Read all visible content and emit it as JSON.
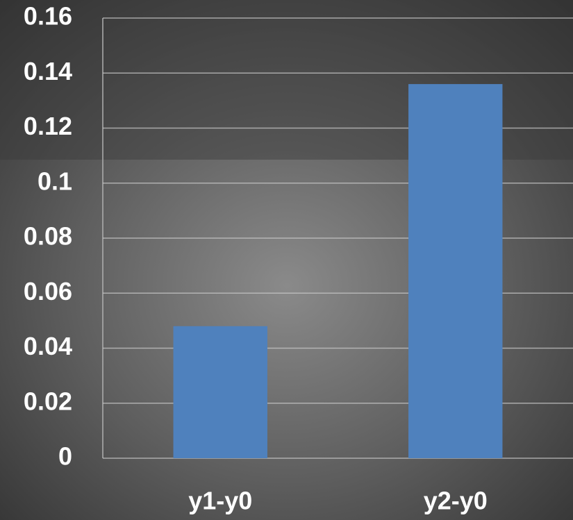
{
  "chart_data": {
    "type": "bar",
    "categories": [
      "y1-y0",
      "y2-y0"
    ],
    "values": [
      0.048,
      0.136
    ],
    "color": "#4f81bd",
    "ylim": [
      0,
      0.16
    ],
    "yticks": [
      0,
      0.02,
      0.04,
      0.06,
      0.08,
      0.1,
      0.12,
      0.14,
      0.16
    ],
    "grid": true
  }
}
